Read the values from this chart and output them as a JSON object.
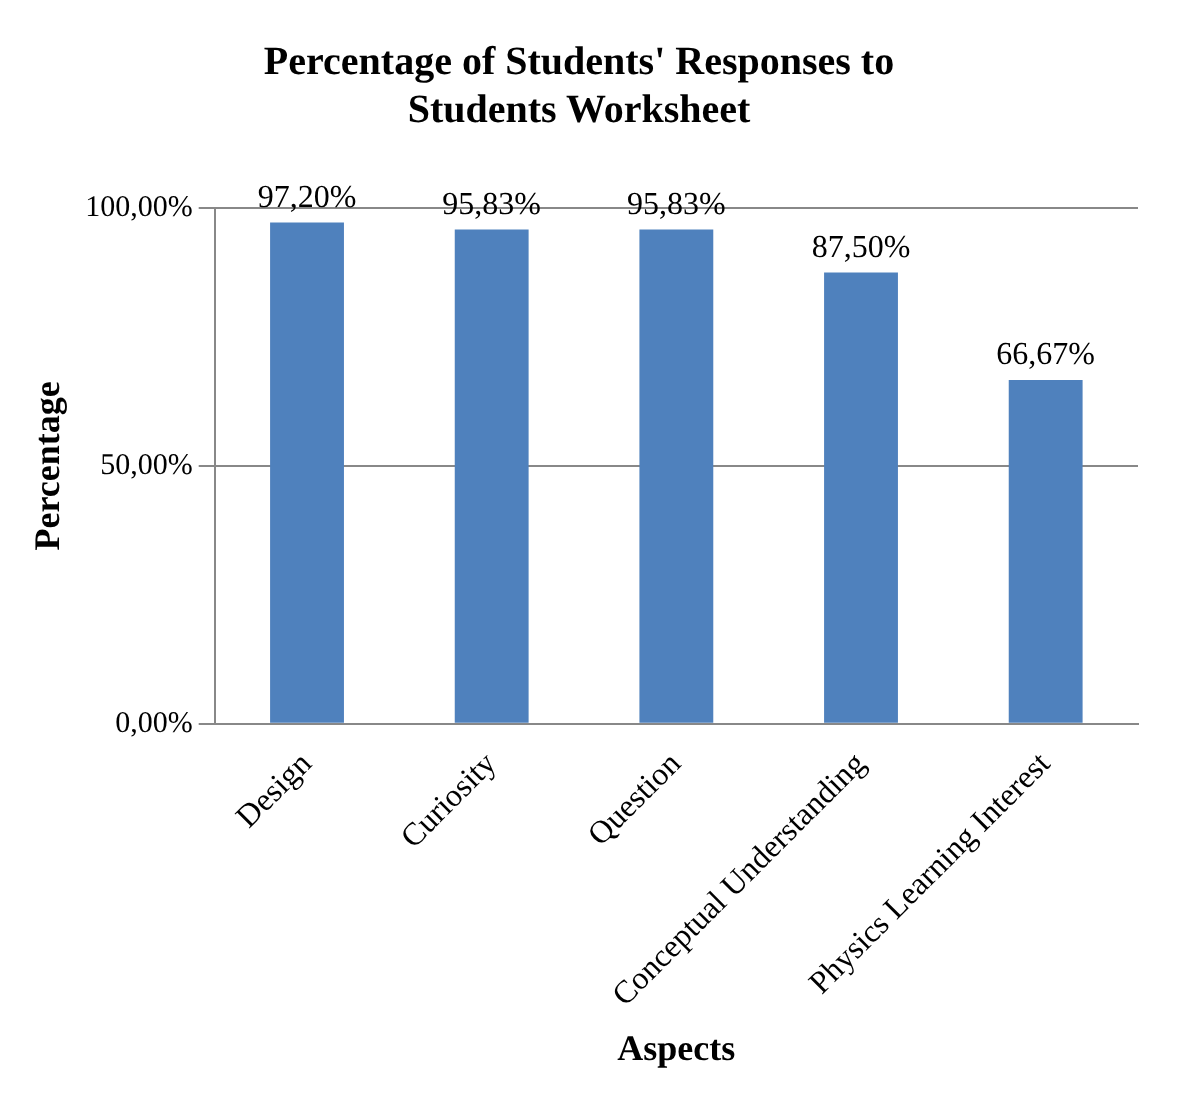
{
  "chart_data": {
    "type": "bar",
    "title": "Percentage of Students' Responses to Students Worksheet",
    "xlabel": "Aspects",
    "ylabel": "Percentage",
    "categories": [
      "Design",
      "Curiosity",
      "Question",
      "Conceptual Understanding",
      "Physics Learning Interest"
    ],
    "values": [
      97.2,
      95.83,
      95.83,
      87.5,
      66.67
    ],
    "value_labels": [
      "97,20%",
      "95,83%",
      "95,83%",
      "87,50%",
      "66,67%"
    ],
    "color": "#4f81bd",
    "ylim": [
      0,
      100
    ],
    "yticks": [
      {
        "value": 0,
        "label": "0,00%"
      },
      {
        "value": 50,
        "label": "50,00%"
      },
      {
        "value": 100,
        "label": "100,00%"
      }
    ],
    "grid": "y",
    "legend": false
  }
}
